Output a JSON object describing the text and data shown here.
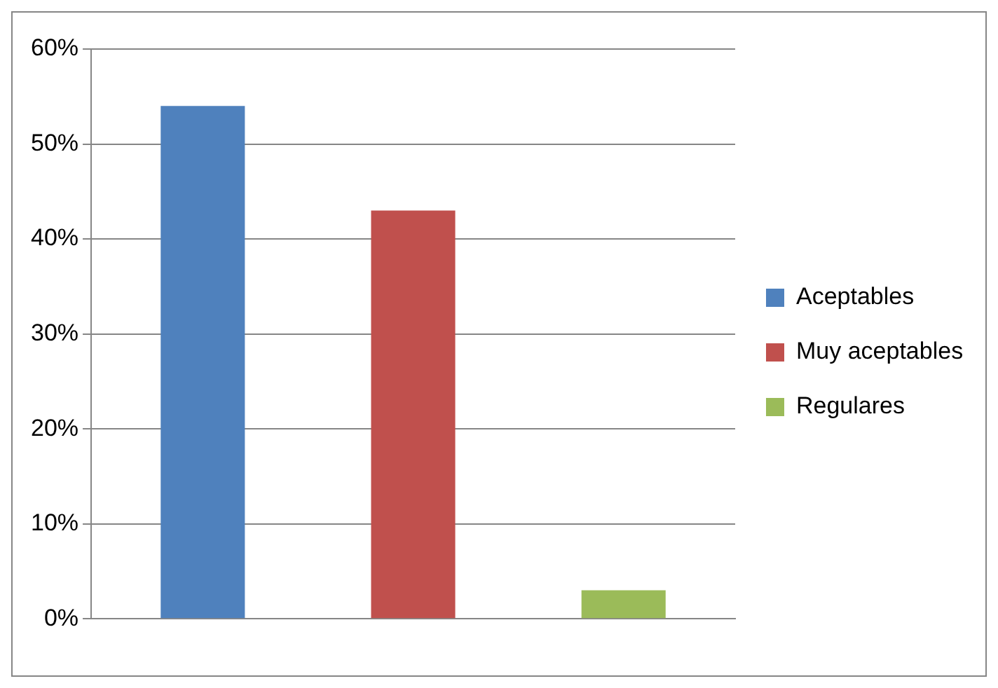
{
  "chart_data": {
    "type": "bar",
    "categories": [
      null
    ],
    "series": [
      {
        "name": "Aceptables",
        "color": "#4f81bd",
        "values": [
          54
        ]
      },
      {
        "name": "Muy aceptables",
        "color": "#c0504d",
        "values": [
          43
        ]
      },
      {
        "name": "Regulares",
        "color": "#9bbb59",
        "values": [
          3
        ]
      }
    ],
    "ylim": [
      0,
      60
    ],
    "yticks": [
      {
        "value": 0,
        "label": "0%"
      },
      {
        "value": 10,
        "label": "10%"
      },
      {
        "value": 20,
        "label": "20%"
      },
      {
        "value": 30,
        "label": "30%"
      },
      {
        "value": 40,
        "label": "40%"
      },
      {
        "value": 50,
        "label": "50%"
      },
      {
        "value": 60,
        "label": "60%"
      }
    ],
    "grid": "y",
    "legend": "right"
  }
}
